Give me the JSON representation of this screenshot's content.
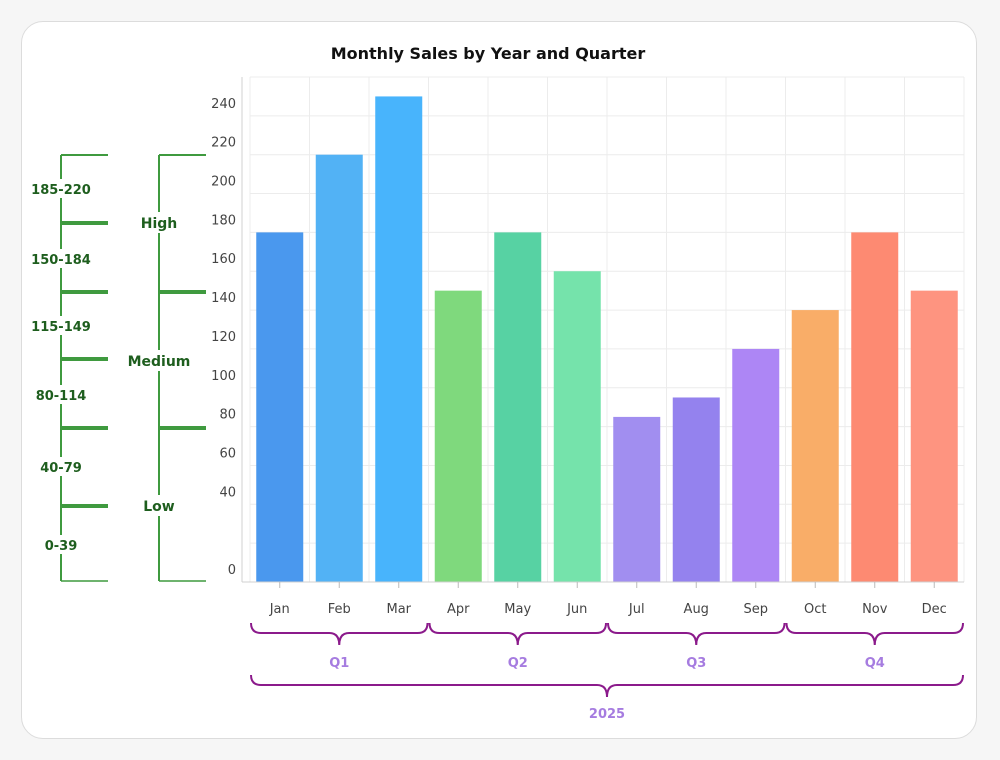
{
  "chart_data": {
    "type": "bar",
    "title": "Monthly Sales by Year and Quarter",
    "categories": [
      "Jan",
      "Feb",
      "Mar",
      "Apr",
      "May",
      "Jun",
      "Jul",
      "Aug",
      "Sep",
      "Oct",
      "Nov",
      "Dec"
    ],
    "values": [
      180,
      220,
      250,
      150,
      180,
      160,
      85,
      95,
      120,
      140,
      180,
      150
    ],
    "bar_colors": [
      "#4a98ee",
      "#52b2f5",
      "#48b4fc",
      "#7fd97d",
      "#57d2a3",
      "#75e3ab",
      "#a18ef0",
      "#9482ee",
      "#ad86f5",
      "#f9ad68",
      "#fd8a72",
      "#fe9480"
    ],
    "ylim": [
      0,
      260
    ],
    "y_ticks": [
      0,
      40,
      60,
      80,
      100,
      120,
      140,
      160,
      180,
      200,
      220,
      240
    ],
    "y_gridlines": [
      0,
      20,
      40,
      60,
      80,
      100,
      120,
      140,
      160,
      180,
      200,
      220,
      240,
      260
    ],
    "grid": true,
    "value_bands": [
      {
        "label": "185-220",
        "from": 185,
        "to": 220
      },
      {
        "label": "150-184",
        "from": 150,
        "to": 184
      },
      {
        "label": "115-149",
        "from": 115,
        "to": 149
      },
      {
        "label": "80-114",
        "from": 80,
        "to": 114
      },
      {
        "label": "40-79",
        "from": 40,
        "to": 79
      },
      {
        "label": "0-39",
        "from": 0,
        "to": 39
      }
    ],
    "value_categories": [
      {
        "label": "High",
        "from": 150,
        "to": 220
      },
      {
        "label": "Medium",
        "from": 80,
        "to": 150
      },
      {
        "label": "Low",
        "from": 0,
        "to": 80
      }
    ],
    "quarters": [
      {
        "label": "Q1",
        "start": 0,
        "end": 2
      },
      {
        "label": "Q2",
        "start": 3,
        "end": 5
      },
      {
        "label": "Q3",
        "start": 6,
        "end": 8
      },
      {
        "label": "Q4",
        "start": 9,
        "end": 11
      }
    ],
    "year": {
      "label": "2025",
      "start": 0,
      "end": 11
    },
    "bracket_color": "#8b1a8b",
    "band_color": "#3f9a3f"
  }
}
